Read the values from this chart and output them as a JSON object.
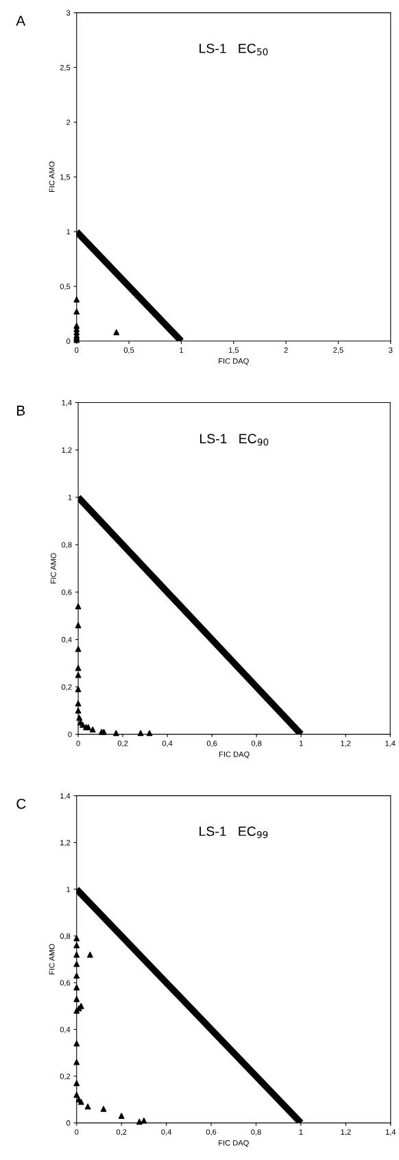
{
  "chart_data": [
    {
      "type": "scatter",
      "title": "LS-1   EC$_{50}$",
      "xlabel": "FIC DAQ",
      "ylabel": "FIC AMO",
      "annotations": [
        "A"
      ],
      "xlim": [
        0,
        3
      ],
      "ylim": [
        0,
        3
      ],
      "marker": "triangle",
      "grid": false,
      "legend": false,
      "xticks": [
        0,
        {
          "value": 0.5,
          "label": "0,5"
        },
        1,
        {
          "value": 1.5,
          "label": "1,5"
        },
        2,
        {
          "value": 2.5,
          "label": "2,5"
        },
        3
      ],
      "yticks": [
        0,
        {
          "value": 0.5,
          "label": "0,5"
        },
        1,
        {
          "value": 1.5,
          "label": "1,5"
        },
        2,
        {
          "value": 2.5,
          "label": "2,5"
        },
        3
      ],
      "series": [
        {
          "type": "line",
          "marker": "none",
          "color": "#000000",
          "x": [
            0,
            1
          ],
          "values": [
            1,
            0
          ]
        },
        {
          "color": "#000000",
          "x": [
            0,
            0,
            0,
            0,
            0,
            0,
            0,
            0,
            0.38
          ],
          "values": [
            0.38,
            0.27,
            0.14,
            0.11,
            0.08,
            0.05,
            0.03,
            0.01,
            0.08
          ]
        }
      ]
    },
    {
      "type": "scatter",
      "title": "LS-1   EC$_{90}$",
      "xlabel": "FIC DAQ",
      "ylabel": "FIC AMO",
      "annotations": [
        "B"
      ],
      "xlim": [
        0,
        1.4
      ],
      "ylim": [
        0,
        1.4
      ],
      "marker": "triangle",
      "grid": false,
      "legend": false,
      "xticks": [
        0,
        {
          "value": 0.2,
          "label": "0,2"
        },
        {
          "value": 0.4,
          "label": "0,4"
        },
        {
          "value": 0.6,
          "label": "0,6"
        },
        {
          "value": 0.8,
          "label": "0,8"
        },
        1,
        {
          "value": 1.2,
          "label": "1,2"
        },
        {
          "value": 1.4,
          "label": "1,4"
        }
      ],
      "yticks": [
        0,
        {
          "value": 0.2,
          "label": "0,2"
        },
        {
          "value": 0.4,
          "label": "0,4"
        },
        {
          "value": 0.6,
          "label": "0,6"
        },
        {
          "value": 0.8,
          "label": "0,8"
        },
        1,
        {
          "value": 1.2,
          "label": "1,2"
        },
        {
          "value": 1.4,
          "label": "1,4"
        }
      ],
      "series": [
        {
          "type": "line",
          "marker": "none",
          "color": "#000000",
          "x": [
            0,
            1
          ],
          "values": [
            1,
            0
          ]
        },
        {
          "color": "#000000",
          "x": [
            0,
            0,
            0,
            0,
            0,
            0,
            0,
            0,
            0.005,
            0.01,
            0.02,
            0.035,
            0.045,
            0.065,
            0.105,
            0.115,
            0.17,
            0.28,
            0.32
          ],
          "values": [
            0.54,
            0.46,
            0.36,
            0.28,
            0.25,
            0.19,
            0.13,
            0.1,
            0.07,
            0.05,
            0.04,
            0.03,
            0.03,
            0.02,
            0.01,
            0.01,
            0.005,
            0.005,
            0.005
          ]
        }
      ]
    },
    {
      "type": "scatter",
      "title": "LS-1   EC$_{99}$",
      "xlabel": "FIC DAQ",
      "ylabel": "FIC AMO",
      "annotations": [
        "C"
      ],
      "xlim": [
        0,
        1.4
      ],
      "ylim": [
        0,
        1.4
      ],
      "marker": "triangle",
      "grid": false,
      "legend": false,
      "xticks": [
        0,
        {
          "value": 0.2,
          "label": "0,2"
        },
        {
          "value": 0.4,
          "label": "0,4"
        },
        {
          "value": 0.6,
          "label": "0,6"
        },
        {
          "value": 0.8,
          "label": "0,8"
        },
        1,
        {
          "value": 1.2,
          "label": "1,2"
        },
        {
          "value": 1.4,
          "label": "1,4"
        }
      ],
      "yticks": [
        0,
        {
          "value": 0.2,
          "label": "0,2"
        },
        {
          "value": 0.4,
          "label": "0,4"
        },
        {
          "value": 0.6,
          "label": "0,6"
        },
        {
          "value": 0.8,
          "label": "0,8"
        },
        1,
        {
          "value": 1.2,
          "label": "1,2"
        },
        {
          "value": 1.4,
          "label": "1,4"
        }
      ],
      "series": [
        {
          "type": "line",
          "marker": "none",
          "color": "#000000",
          "x": [
            0,
            1
          ],
          "values": [
            1,
            0
          ]
        },
        {
          "color": "#000000",
          "x": [
            0,
            0,
            0,
            0,
            0,
            0,
            0,
            0,
            0,
            0,
            0,
            0,
            0.06,
            0.02,
            0.01,
            0.02,
            0.01,
            0.05,
            0.12,
            0.2,
            0.28,
            0.3
          ],
          "values": [
            0.79,
            0.76,
            0.72,
            0.68,
            0.63,
            0.58,
            0.53,
            0.48,
            0.34,
            0.26,
            0.17,
            0.12,
            0.72,
            0.5,
            0.49,
            0.09,
            0.1,
            0.07,
            0.06,
            0.03,
            0.005,
            0.01
          ]
        }
      ]
    }
  ]
}
